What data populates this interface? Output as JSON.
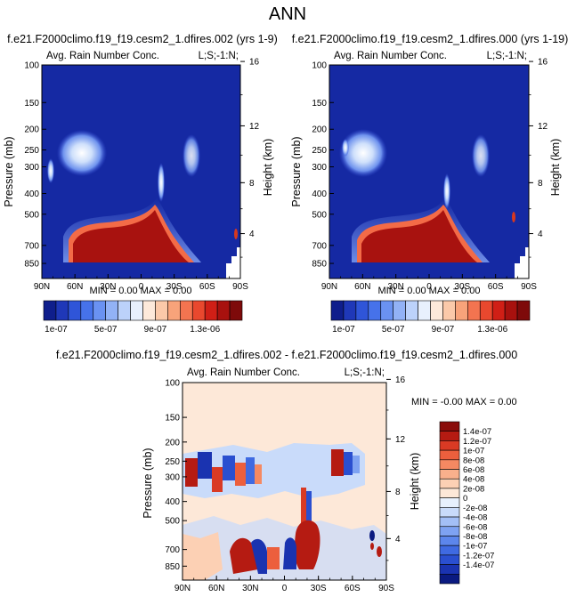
{
  "page": {
    "title": "ANN"
  },
  "panels": [
    {
      "id": "p1",
      "case_title": "f.e21.F2000climo.f19_f19.cesm2_1.dfires.002 (yrs 1-9)",
      "left_title": "Avg. Rain Number Conc.",
      "right_title": "L;S;-1:N;",
      "ylabel": "Pressure (mb)",
      "ylabel_right": "Height (km)",
      "minmax": "MIN =  0.00  MAX =  0.00"
    },
    {
      "id": "p2",
      "case_title": "f.e21.F2000climo.f19_f19.cesm2_1.dfires.000 (yrs 1-19)",
      "left_title": "Avg. Rain Number Conc.",
      "right_title": "L;S;-1:N;",
      "ylabel": "Pressure (mb)",
      "ylabel_right": "Height (km)",
      "minmax": "MIN =  0.00  MAX =  0.00"
    },
    {
      "id": "p3",
      "case_title": "f.e21.F2000climo.f19_f19.cesm2_1.dfires.002 - f.e21.F2000climo.f19_f19.cesm2_1.dfires.000",
      "left_title": "Avg. Rain Number Conc.",
      "right_title": "L;S;-1:N;",
      "ylabel": "Pressure (mb)",
      "ylabel_right": "Height (km)",
      "minmax": "MIN = -0.00  MAX =  0.00"
    }
  ],
  "chart_data": {
    "type": "heatmap",
    "x_tick_labels": [
      "90N",
      "60N",
      "30N",
      "0",
      "30S",
      "60S",
      "90S"
    ],
    "x_ticks": [
      90,
      60,
      30,
      0,
      -30,
      -60,
      -90
    ],
    "y_pressure_ticks": [
      100,
      150,
      200,
      250,
      300,
      400,
      500,
      700,
      850
    ],
    "y_pressure_labels": [
      "100",
      "150",
      "200",
      "250",
      "300",
      "400",
      "500",
      "700",
      "850"
    ],
    "ylim_pressure": [
      1000,
      100
    ],
    "y_log_scale": true,
    "height_ticks": [
      4,
      8,
      12,
      16
    ],
    "height_labels": [
      "4",
      "8",
      "12",
      "16"
    ],
    "top_colorbar": {
      "colors": [
        "#0f1e8c",
        "#1f38b8",
        "#2f55d8",
        "#4672ea",
        "#6a92f2",
        "#92b2f6",
        "#bcd2fa",
        "#e8f0fd",
        "#fde9da",
        "#fbc9a9",
        "#f8a37a",
        "#f37450",
        "#e9482e",
        "#d01f16",
        "#a8110e",
        "#7e0a0a"
      ],
      "labels": [
        "1e-07",
        "5e-07",
        "9e-07",
        "1.3e-06"
      ]
    },
    "diff_colorbar": {
      "colors": [
        "#0a1a80",
        "#1a33b0",
        "#2a4fd0",
        "#3f6ae2",
        "#5c86ec",
        "#7ea2f2",
        "#a3bff6",
        "#c9dbfa",
        "#e7f0fd",
        "#fde8d8",
        "#fcd0b4",
        "#f9b08c",
        "#f58962",
        "#ec5f3d",
        "#d93a24",
        "#b51b12",
        "#8a0c0a"
      ],
      "labels": [
        "1.4e-07",
        "1.2e-07",
        "1e-07",
        "8e-08",
        "6e-08",
        "4e-08",
        "2e-08",
        "0",
        "-2e-08",
        "-4e-08",
        "-6e-08",
        "-8e-08",
        "-1e-07",
        "-1.2e-07",
        "-1.4e-07"
      ]
    }
  }
}
